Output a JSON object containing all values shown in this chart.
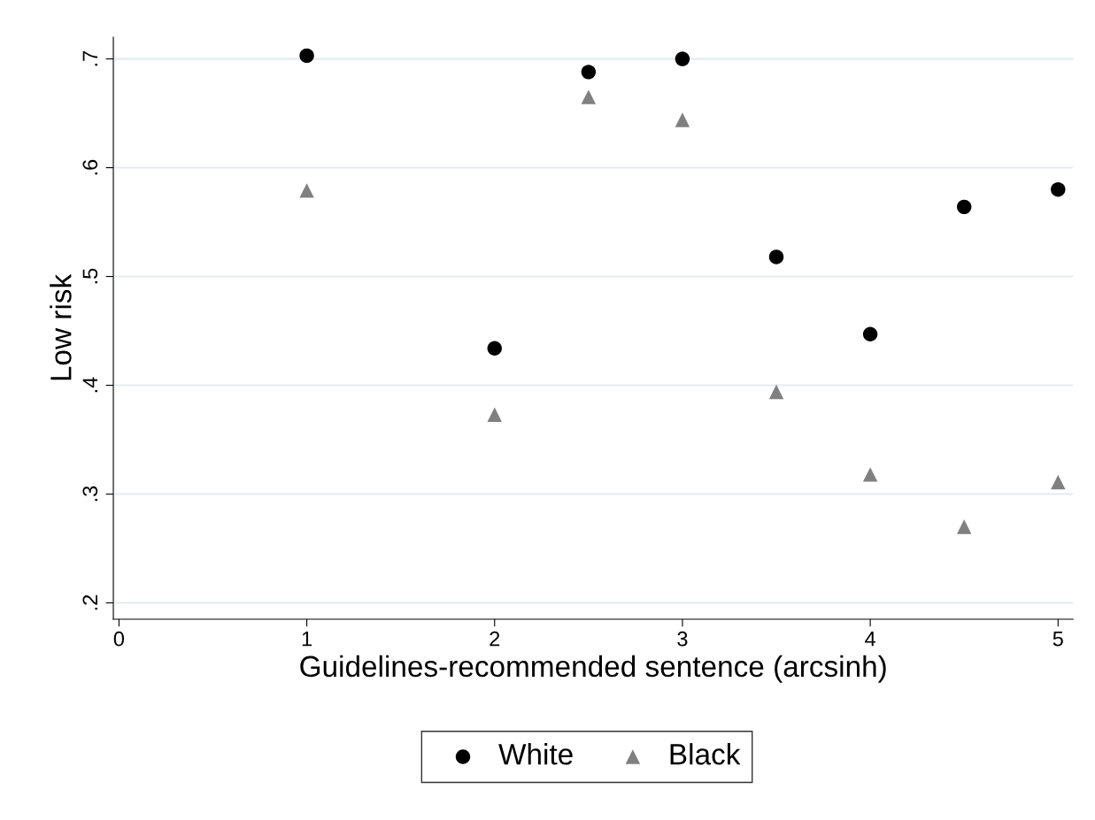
{
  "chart_data": {
    "type": "scatter",
    "xlabel": "Guidelines-recommended sentence (arcsinh)",
    "ylabel": "Low risk",
    "x": [
      1,
      2,
      2.5,
      3,
      3.5,
      4,
      4.5,
      5
    ],
    "series": [
      {
        "name": "White",
        "color": "#000000",
        "marker": "circle",
        "values": [
          0.703,
          0.434,
          0.688,
          0.7,
          0.518,
          0.447,
          0.564,
          0.58
        ]
      },
      {
        "name": "Black",
        "color": "#808080",
        "marker": "triangle",
        "values": [
          0.579,
          0.373,
          0.665,
          0.644,
          0.394,
          0.318,
          0.27,
          0.311
        ]
      }
    ],
    "xlim": [
      -0.03,
      5.08
    ],
    "xticks": [
      0,
      1,
      2,
      3,
      4,
      5
    ],
    "ylim": [
      0.185,
      0.72
    ],
    "yticks": [
      {
        "value": 0.2,
        "label": ".2"
      },
      {
        "value": 0.3,
        "label": ".3"
      },
      {
        "value": 0.4,
        "label": ".4"
      },
      {
        "value": 0.5,
        "label": ".5"
      },
      {
        "value": 0.6,
        "label": ".6"
      },
      {
        "value": 0.7,
        "label": ".7"
      }
    ],
    "grid": "y",
    "legend": "bottom"
  }
}
